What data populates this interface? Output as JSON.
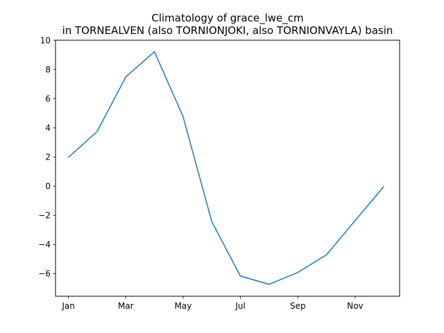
{
  "chart_data": {
    "type": "line",
    "title_line1": "Climatology of grace_lwe_cm",
    "title_line2": "in TORNEALVEN (also TORNIONJOKI, also TORNIONVAYLA) basin",
    "xlabel": "",
    "ylabel": "",
    "x": [
      1,
      2,
      3,
      4,
      5,
      6,
      7,
      8,
      9,
      10,
      11,
      12
    ],
    "xlim": [
      0.55,
      12.55
    ],
    "ylim": [
      -7.55,
      10
    ],
    "x_ticks": [
      {
        "value": 1,
        "label": "Jan"
      },
      {
        "value": 3,
        "label": "Mar"
      },
      {
        "value": 5,
        "label": "May"
      },
      {
        "value": 7,
        "label": "Jul"
      },
      {
        "value": 9,
        "label": "Sep"
      },
      {
        "value": 11,
        "label": "Nov"
      }
    ],
    "y_ticks": [
      {
        "value": 10,
        "label": "10"
      },
      {
        "value": 8,
        "label": "8"
      },
      {
        "value": 6,
        "label": "6"
      },
      {
        "value": 4,
        "label": "4"
      },
      {
        "value": 2,
        "label": "2"
      },
      {
        "value": 0,
        "label": "0"
      },
      {
        "value": -2,
        "label": "−2"
      },
      {
        "value": -4,
        "label": "−4"
      },
      {
        "value": -6,
        "label": "−6"
      }
    ],
    "grid": false,
    "legend": "none",
    "series": [
      {
        "values": [
          1.97,
          3.74,
          7.48,
          9.21,
          4.76,
          -2.44,
          -6.17,
          -6.73,
          -5.92,
          -4.71,
          -2.36,
          -0.03
        ],
        "color": "#1f77b4"
      }
    ]
  }
}
